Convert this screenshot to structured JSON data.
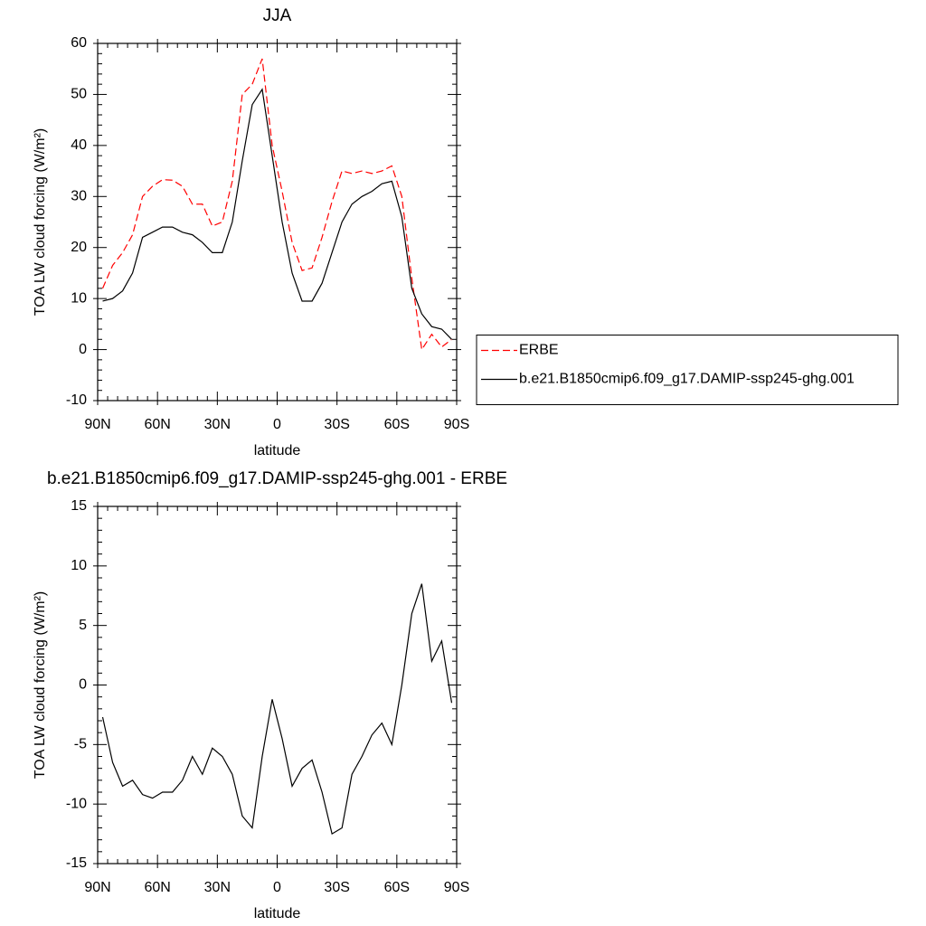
{
  "chart_data": [
    {
      "type": "line",
      "title": "JJA",
      "xlabel": "latitude",
      "ylabel": "TOA LW cloud forcing (W/m²)",
      "x": [
        87.5,
        82.5,
        77.5,
        72.5,
        67.5,
        62.5,
        57.5,
        52.5,
        47.5,
        42.5,
        37.5,
        32.5,
        27.5,
        22.5,
        17.5,
        12.5,
        7.5,
        2.5,
        -2.5,
        -7.5,
        -12.5,
        -17.5,
        -22.5,
        -27.5,
        -32.5,
        -37.5,
        -42.5,
        -47.5,
        -52.5,
        -57.5,
        -62.5,
        -67.5,
        -72.5,
        -77.5,
        -82.5,
        -87.5
      ],
      "xlim": [
        90,
        -90
      ],
      "xticks": [
        {
          "value": 90,
          "label": "90N"
        },
        {
          "value": 60,
          "label": "60N"
        },
        {
          "value": 30,
          "label": "30N"
        },
        0,
        {
          "value": -30,
          "label": "30S"
        },
        {
          "value": -60,
          "label": "60S"
        },
        {
          "value": -90,
          "label": "90S"
        }
      ],
      "ylim": [
        -10,
        60
      ],
      "yticks": [
        -10,
        0,
        10,
        20,
        30,
        40,
        50,
        60
      ],
      "legend": "right",
      "series": [
        {
          "name": "ERBE",
          "color": "#ff0000",
          "style": "dashed",
          "values": [
            12,
            16.5,
            19,
            22.5,
            30,
            32,
            33.3,
            33.2,
            32,
            28.5,
            28.5,
            24.2,
            25,
            33,
            50,
            52,
            57,
            40,
            31,
            21,
            15.5,
            16,
            22,
            29,
            35,
            34.5,
            35,
            34.5,
            35,
            36,
            30,
            14,
            0,
            3,
            0.5,
            2
          ]
        },
        {
          "name": "b.e21.B1850cmip6.f09_g17.DAMIP-ssp245-ghg.001",
          "color": "#000000",
          "style": "solid",
          "values": [
            9.5,
            10,
            11.5,
            15,
            22,
            23,
            24,
            24,
            23,
            22.5,
            21,
            19,
            19,
            25,
            37,
            48,
            51,
            38,
            25,
            15,
            9.5,
            9.5,
            13,
            19,
            25,
            28.5,
            30,
            31,
            32.5,
            33,
            26,
            12,
            7,
            4.5,
            4,
            2
          ]
        }
      ]
    },
    {
      "type": "line",
      "title": "b.e21.B1850cmip6.f09_g17.DAMIP-ssp245-ghg.001 - ERBE",
      "xlabel": "latitude",
      "ylabel": "TOA LW cloud forcing (W/m²)",
      "x": [
        87.5,
        82.5,
        77.5,
        72.5,
        67.5,
        62.5,
        57.5,
        52.5,
        47.5,
        42.5,
        37.5,
        32.5,
        27.5,
        22.5,
        17.5,
        12.5,
        7.5,
        2.5,
        -2.5,
        -7.5,
        -12.5,
        -17.5,
        -22.5,
        -27.5,
        -32.5,
        -37.5,
        -42.5,
        -47.5,
        -52.5,
        -57.5,
        -62.5,
        -67.5,
        -72.5,
        -77.5,
        -82.5,
        -87.5
      ],
      "xlim": [
        90,
        -90
      ],
      "xticks": [
        {
          "value": 90,
          "label": "90N"
        },
        {
          "value": 60,
          "label": "60N"
        },
        {
          "value": 30,
          "label": "30N"
        },
        0,
        {
          "value": -30,
          "label": "30S"
        },
        {
          "value": -60,
          "label": "60S"
        },
        {
          "value": -90,
          "label": "90S"
        }
      ],
      "ylim": [
        -15,
        15
      ],
      "yticks": [
        -15,
        -10,
        -5,
        0,
        5,
        10,
        15
      ],
      "series": [
        {
          "color": "#000000",
          "style": "solid",
          "values": [
            -2.7,
            -6.5,
            -8.5,
            -8,
            -9.2,
            -9.5,
            -9,
            -9,
            -8,
            -6,
            -7.5,
            -5.3,
            -6,
            -7.5,
            -11,
            -12,
            -6,
            -1.2,
            -4.5,
            -8.5,
            -7,
            -6.3,
            -9,
            -12.5,
            -12,
            -7.5,
            -6,
            -4.2,
            -3.2,
            -5,
            0,
            6,
            8.5,
            2,
            3.7,
            -1.5
          ]
        }
      ]
    }
  ]
}
